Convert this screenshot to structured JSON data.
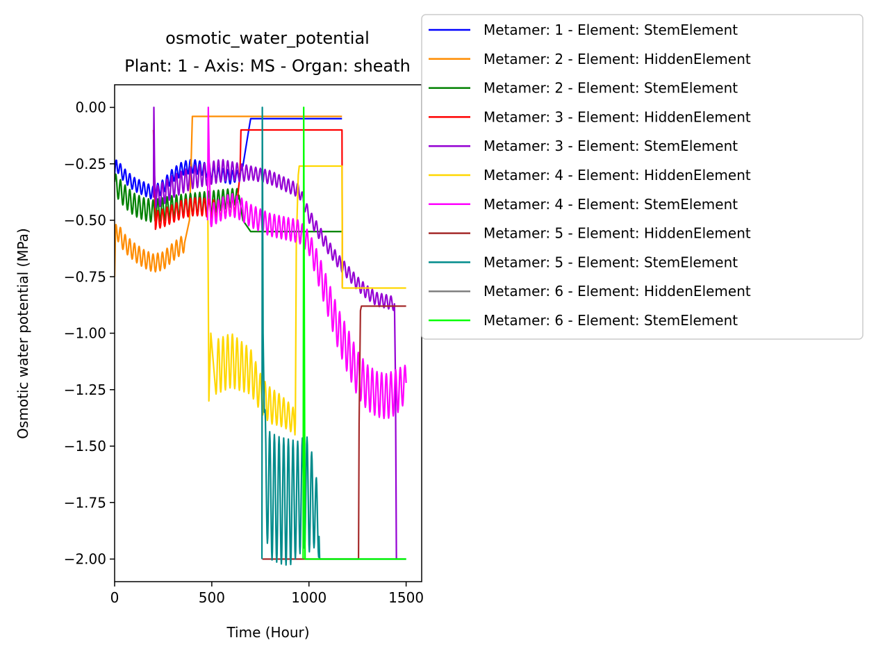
{
  "chart_data": {
    "type": "line",
    "title": "osmotic_water_potential",
    "subtitle": "Plant: 1 - Axis: MS - Organ: sheath",
    "xlabel": "Time (Hour)",
    "ylabel": "Osmotic water potential (MPa)",
    "xlim": [
      0,
      1580
    ],
    "ylim": [
      -2.1,
      0.1
    ],
    "xticks": [
      0,
      500,
      1000,
      1500
    ],
    "xtick_labels": [
      "0",
      "500",
      "1000",
      "1500"
    ],
    "yticks": [
      0.0,
      -0.25,
      -0.5,
      -0.75,
      -1.0,
      -1.25,
      -1.5,
      -1.75,
      -2.0
    ],
    "ytick_labels": [
      "0.00",
      "−0.25",
      "−0.50",
      "−0.75",
      "−1.00",
      "−1.25",
      "−1.50",
      "−1.75",
      "−2.00"
    ],
    "legend_position": "outside-right",
    "grid": false,
    "series": [
      {
        "name": "Metamer: 1 - Element: StemElement",
        "color": "#0000ff",
        "x": [
          0,
          10,
          30,
          60,
          100,
          150,
          200,
          250,
          300,
          350,
          400,
          450,
          500,
          550,
          600,
          640,
          660,
          675,
          690,
          700,
          750,
          800,
          900,
          1000,
          1100,
          1170
        ],
        "y": [
          -0.3,
          -0.25,
          -0.28,
          -0.31,
          -0.34,
          -0.36,
          -0.38,
          -0.35,
          -0.3,
          -0.27,
          -0.26,
          -0.27,
          -0.29,
          -0.3,
          -0.31,
          -0.3,
          -0.26,
          -0.18,
          -0.1,
          -0.05,
          -0.05,
          -0.05,
          -0.05,
          -0.05,
          -0.05,
          -0.05
        ],
        "osc_amp": [
          0.03,
          0.03,
          0.03,
          0.03,
          0.03,
          0.03,
          0.03,
          0.03,
          0.03,
          0.03,
          0.03,
          0.03,
          0.03,
          0.03,
          0.03,
          0.02,
          0,
          0,
          0,
          0,
          0,
          0,
          0,
          0,
          0,
          0
        ]
      },
      {
        "name": "Metamer: 2 - Element: HiddenElement",
        "color": "#ff8c00",
        "x": [
          0,
          5,
          15,
          50,
          100,
          150,
          200,
          250,
          300,
          360,
          385,
          395,
          400,
          450,
          500,
          600,
          700,
          800,
          900,
          1000,
          1100,
          1170
        ],
        "y": [
          -0.75,
          -0.55,
          -0.55,
          -0.6,
          -0.64,
          -0.67,
          -0.69,
          -0.68,
          -0.64,
          -0.6,
          -0.5,
          -0.2,
          -0.04,
          -0.04,
          -0.04,
          -0.04,
          -0.04,
          -0.04,
          -0.04,
          -0.04,
          -0.04,
          -0.04
        ],
        "osc_amp": [
          0,
          0.03,
          0.04,
          0.04,
          0.04,
          0.04,
          0.04,
          0.04,
          0.04,
          0.04,
          0,
          0,
          0,
          0,
          0,
          0,
          0,
          0,
          0,
          0,
          0,
          0
        ]
      },
      {
        "name": "Metamer: 2 - Element: StemElement",
        "color": "#008000",
        "x": [
          0,
          20,
          60,
          100,
          150,
          200,
          250,
          300,
          400,
          500,
          600,
          640,
          660,
          700,
          800,
          900,
          950,
          1000,
          1100,
          1170
        ],
        "y": [
          -0.33,
          -0.36,
          -0.4,
          -0.43,
          -0.45,
          -0.46,
          -0.45,
          -0.44,
          -0.43,
          -0.42,
          -0.4,
          -0.39,
          -0.5,
          -0.55,
          -0.55,
          -0.55,
          -0.55,
          -0.55,
          -0.55,
          -0.55
        ],
        "osc_amp": [
          0.04,
          0.05,
          0.05,
          0.05,
          0.05,
          0.05,
          0.05,
          0.05,
          0.05,
          0.05,
          0.04,
          0.03,
          0,
          0,
          0,
          0,
          0,
          0,
          0,
          0
        ]
      },
      {
        "name": "Metamer: 3 - Element: HiddenElement",
        "color": "#ff0000",
        "x": [
          200,
          210,
          250,
          300,
          350,
          400,
          450,
          500,
          550,
          600,
          630,
          645,
          650,
          700,
          800,
          900,
          1000,
          1100,
          1170,
          1172
        ],
        "y": [
          -0.1,
          -0.5,
          -0.49,
          -0.47,
          -0.45,
          -0.44,
          -0.44,
          -0.45,
          -0.45,
          -0.44,
          -0.42,
          -0.3,
          -0.1,
          -0.1,
          -0.1,
          -0.1,
          -0.1,
          -0.1,
          -0.1,
          -0.8
        ],
        "osc_amp": [
          0,
          0.04,
          0.04,
          0.04,
          0.04,
          0.04,
          0.04,
          0.04,
          0.04,
          0.04,
          0.03,
          0,
          0,
          0,
          0,
          0,
          0,
          0,
          0,
          0
        ]
      },
      {
        "name": "Metamer: 3 - Element: StemElement",
        "color": "#9400d3",
        "x": [
          200,
          202,
          206,
          212,
          250,
          300,
          350,
          400,
          450,
          500,
          550,
          600,
          650,
          700,
          750,
          800,
          850,
          900,
          950,
          1000,
          1050,
          1100,
          1150,
          1200,
          1250,
          1300,
          1350,
          1400,
          1440,
          1445,
          1450
        ],
        "y": [
          -0.4,
          0.0,
          -0.3,
          -0.4,
          -0.38,
          -0.35,
          -0.33,
          -0.31,
          -0.3,
          -0.29,
          -0.28,
          -0.28,
          -0.29,
          -0.29,
          -0.3,
          -0.31,
          -0.33,
          -0.35,
          -0.37,
          -0.48,
          -0.55,
          -0.62,
          -0.68,
          -0.73,
          -0.78,
          -0.82,
          -0.85,
          -0.86,
          -0.87,
          -1.2,
          -2.0
        ],
        "osc_amp": [
          0,
          0,
          0,
          0.05,
          0.05,
          0.05,
          0.05,
          0.05,
          0.05,
          0.05,
          0.05,
          0.04,
          0.04,
          0.03,
          0.03,
          0.03,
          0.03,
          0.03,
          0.03,
          0.03,
          0.03,
          0.03,
          0.03,
          0.03,
          0.03,
          0.03,
          0.03,
          0.03,
          0.03,
          0,
          0
        ]
      },
      {
        "name": "Metamer: 4 - Element: HiddenElement",
        "color": "#ffd700",
        "x": [
          480,
          485,
          495,
          520,
          600,
          700,
          760,
          800,
          850,
          900,
          930,
          935,
          945,
          950,
          1000,
          1100,
          1170,
          1172,
          1200,
          1300,
          1400,
          1500
        ],
        "y": [
          -0.5,
          -1.3,
          -1.0,
          -1.15,
          -1.12,
          -1.17,
          -1.28,
          -1.32,
          -1.34,
          -1.37,
          -1.4,
          -0.6,
          -0.3,
          -0.26,
          -0.26,
          -0.26,
          -0.26,
          -0.8,
          -0.8,
          -0.8,
          -0.8,
          -0.8
        ],
        "osc_amp": [
          0,
          0,
          0,
          0.12,
          0.12,
          0.1,
          0.08,
          0.08,
          0.07,
          0.06,
          0.06,
          0,
          0,
          0,
          0,
          0,
          0,
          0,
          0,
          0,
          0,
          0
        ]
      },
      {
        "name": "Metamer: 4 - Element: StemElement",
        "color": "#ff00ff",
        "x": [
          478,
          482,
          488,
          495,
          550,
          600,
          650,
          700,
          750,
          800,
          850,
          900,
          950,
          1000,
          1050,
          1100,
          1150,
          1200,
          1250,
          1300,
          1350,
          1400,
          1450,
          1500
        ],
        "y": [
          -0.5,
          0.0,
          -0.3,
          -0.48,
          -0.45,
          -0.43,
          -0.45,
          -0.48,
          -0.5,
          -0.52,
          -0.53,
          -0.54,
          -0.55,
          -0.6,
          -0.72,
          -0.85,
          -0.98,
          -1.08,
          -1.18,
          -1.24,
          -1.27,
          -1.28,
          -1.26,
          -1.22
        ],
        "osc_amp": [
          0,
          0,
          0,
          0.05,
          0.05,
          0.05,
          0.05,
          0.05,
          0.05,
          0.05,
          0.05,
          0.05,
          0.05,
          0.05,
          0.07,
          0.08,
          0.09,
          0.1,
          0.1,
          0.1,
          0.1,
          0.1,
          0.1,
          0.08
        ]
      },
      {
        "name": "Metamer: 5 - Element: HiddenElement",
        "color": "#a52a2a",
        "x": [
          760,
          762,
          800,
          900,
          1000,
          1100,
          1200,
          1255,
          1258,
          1265,
          1270,
          1300,
          1400,
          1500
        ],
        "y": [
          -2.0,
          -2.0,
          -2.0,
          -2.0,
          -2.0,
          -2.0,
          -2.0,
          -2.0,
          -1.4,
          -0.9,
          -0.88,
          -0.88,
          -0.88,
          -0.88
        ],
        "osc_amp": [
          0,
          0,
          0,
          0,
          0,
          0,
          0,
          0,
          0,
          0,
          0,
          0,
          0,
          0
        ]
      },
      {
        "name": "Metamer: 5 - Element: StemElement",
        "color": "#008b8b",
        "x": [
          758,
          760,
          764,
          770,
          780,
          800,
          850,
          900,
          950,
          980,
          1000,
          1020,
          1040,
          1052,
          1055,
          1100,
          1200,
          1300,
          1400,
          1500
        ],
        "y": [
          -2.0,
          0.0,
          -1.0,
          -1.4,
          -1.65,
          -1.72,
          -1.74,
          -1.75,
          -1.73,
          -1.7,
          -1.72,
          -1.75,
          -1.8,
          -1.9,
          -2.0,
          -2.0,
          -2.0,
          -2.0,
          -2.0,
          -2.0
        ],
        "osc_amp": [
          0,
          0,
          0,
          0.1,
          0.25,
          0.28,
          0.28,
          0.28,
          0.25,
          0.25,
          0.25,
          0.2,
          0.15,
          0.1,
          0,
          0,
          0,
          0,
          0,
          0
        ]
      },
      {
        "name": "Metamer: 6 - Element: HiddenElement",
        "color": "#808080",
        "x": [
          980,
          1000,
          1100,
          1200,
          1300,
          1400,
          1500
        ],
        "y": [
          -2.0,
          -2.0,
          -2.0,
          -2.0,
          -2.0,
          -2.0,
          -2.0
        ],
        "osc_amp": [
          0,
          0,
          0,
          0,
          0,
          0,
          0
        ]
      },
      {
        "name": "Metamer: 6 - Element: StemElement",
        "color": "#00ff00",
        "x": [
          970,
          973,
          977,
          980,
          990,
          1000,
          1100,
          1200,
          1300,
          1400,
          1500
        ],
        "y": [
          -2.0,
          0.0,
          -1.2,
          -2.0,
          -2.0,
          -2.0,
          -2.0,
          -2.0,
          -2.0,
          -2.0,
          -2.0
        ],
        "osc_amp": [
          0,
          0,
          0,
          0,
          0,
          0,
          0,
          0,
          0,
          0,
          0
        ]
      }
    ]
  }
}
